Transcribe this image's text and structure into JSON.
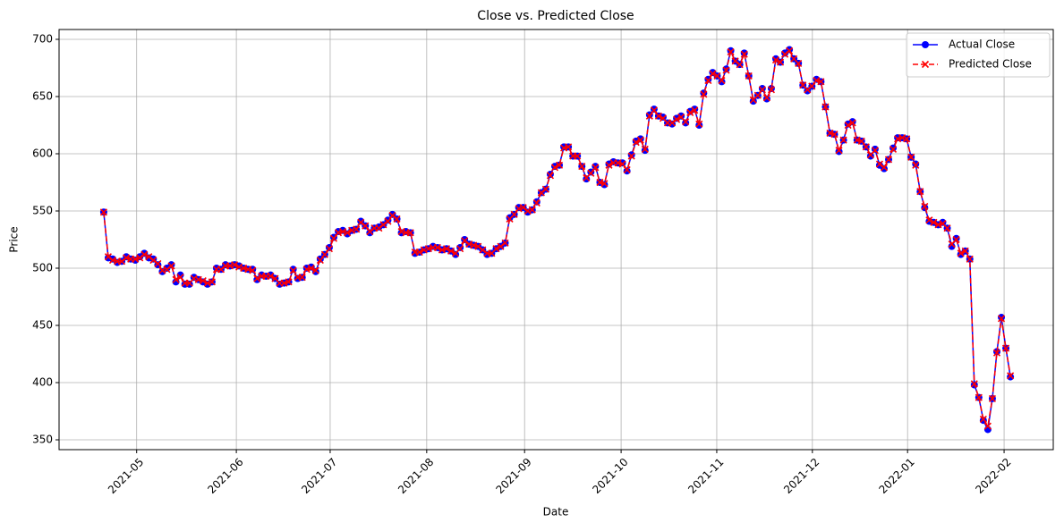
{
  "chart_data": {
    "type": "line",
    "title": "Close vs. Predicted Close",
    "xlabel": "Date",
    "ylabel": "Price",
    "xlim": [
      -9.9,
      210.5
    ],
    "xticks": [
      {
        "value": 7.3,
        "label": "2021-05"
      },
      {
        "value": 29.4,
        "label": "2021-06"
      },
      {
        "value": 50.2,
        "label": "2021-07"
      },
      {
        "value": 71.6,
        "label": "2021-08"
      },
      {
        "value": 93.3,
        "label": "2021-09"
      },
      {
        "value": 114.7,
        "label": "2021-10"
      },
      {
        "value": 135.9,
        "label": "2021-11"
      },
      {
        "value": 157.1,
        "label": "2021-12"
      },
      {
        "value": 178.2,
        "label": "2022-01"
      },
      {
        "value": 199.6,
        "label": "2022-02"
      }
    ],
    "ylim": [
      341.4,
      708.6
    ],
    "yticks": [
      350,
      400,
      450,
      500,
      550,
      600,
      650,
      700
    ],
    "grid": true,
    "legend": "upper right",
    "series": [
      {
        "name": "Actual Close",
        "color": "#0000ff",
        "marker": "o",
        "linestyle": "solid",
        "values": [
          549,
          509,
          508,
          505,
          506,
          510,
          508,
          507,
          510,
          513,
          509,
          508,
          503,
          497,
          500,
          503,
          488,
          494,
          486,
          486,
          492,
          490,
          488,
          486,
          488,
          500,
          499,
          503,
          502,
          503,
          502,
          500,
          499,
          499,
          490,
          494,
          493,
          494,
          491,
          486,
          487,
          488,
          499,
          491,
          492,
          500,
          501,
          497,
          508,
          512,
          518,
          527,
          532,
          533,
          530,
          533,
          534,
          541,
          537,
          531,
          535,
          536,
          538,
          542,
          547,
          543,
          531,
          532,
          531,
          513,
          514,
          516,
          517,
          519,
          518,
          516,
          517,
          515,
          512,
          518,
          525,
          521,
          520,
          519,
          516,
          512,
          513,
          517,
          519,
          522,
          544,
          547,
          553,
          553,
          549,
          551,
          558,
          566,
          569,
          582,
          589,
          590,
          606,
          606,
          598,
          598,
          589,
          578,
          584,
          589,
          575,
          573,
          591,
          593,
          592,
          592,
          585,
          599,
          611,
          613,
          603,
          634,
          639,
          633,
          632,
          627,
          626,
          631,
          633,
          627,
          637,
          639,
          625,
          653,
          665,
          671,
          668,
          663,
          674,
          690,
          681,
          678,
          688,
          668,
          646,
          651,
          657,
          648,
          657,
          683,
          680,
          688,
          691,
          683,
          679,
          660,
          655,
          659,
          665,
          663,
          641,
          618,
          617,
          602,
          612,
          626,
          628,
          612,
          611,
          606,
          598,
          604,
          590,
          587,
          595,
          605,
          614,
          614,
          613,
          597,
          591,
          567,
          553,
          541,
          540,
          538,
          540,
          535,
          519,
          526,
          512,
          515,
          508,
          398,
          387,
          367,
          359,
          386,
          427,
          457,
          430,
          405
        ]
      },
      {
        "name": "Predicted Close",
        "color": "#ff0000",
        "marker": "x",
        "linestyle": "dashed",
        "values": [
          549,
          510,
          507,
          506,
          506,
          509,
          508,
          508,
          509,
          512,
          510,
          507,
          504,
          498,
          499,
          502,
          490,
          492,
          487,
          487,
          491,
          490,
          489,
          487,
          488,
          499,
          499,
          502,
          502,
          503,
          501,
          500,
          499,
          498,
          491,
          493,
          493,
          493,
          491,
          487,
          487,
          488,
          498,
          492,
          492,
          499,
          500,
          498,
          507,
          512,
          517,
          526,
          531,
          532,
          531,
          533,
          534,
          540,
          537,
          532,
          535,
          535,
          538,
          541,
          546,
          543,
          532,
          531,
          531,
          514,
          514,
          516,
          517,
          518,
          518,
          516,
          517,
          515,
          513,
          517,
          524,
          521,
          520,
          519,
          516,
          513,
          513,
          517,
          519,
          522,
          543,
          547,
          552,
          553,
          550,
          551,
          557,
          566,
          569,
          581,
          588,
          590,
          605,
          606,
          598,
          598,
          589,
          579,
          583,
          588,
          575,
          574,
          590,
          592,
          592,
          591,
          586,
          598,
          610,
          612,
          604,
          633,
          638,
          633,
          631,
          627,
          627,
          630,
          632,
          628,
          636,
          638,
          626,
          652,
          664,
          670,
          668,
          664,
          673,
          689,
          681,
          678,
          687,
          668,
          647,
          651,
          656,
          649,
          656,
          682,
          680,
          687,
          690,
          683,
          679,
          660,
          656,
          659,
          664,
          663,
          641,
          618,
          617,
          603,
          612,
          625,
          627,
          612,
          611,
          606,
          599,
          603,
          591,
          588,
          595,
          604,
          613,
          614,
          613,
          597,
          590,
          567,
          554,
          542,
          540,
          538,
          539,
          535,
          521,
          525,
          513,
          515,
          508,
          399,
          387,
          368,
          362,
          386,
          426,
          456,
          430,
          406
        ]
      }
    ]
  }
}
